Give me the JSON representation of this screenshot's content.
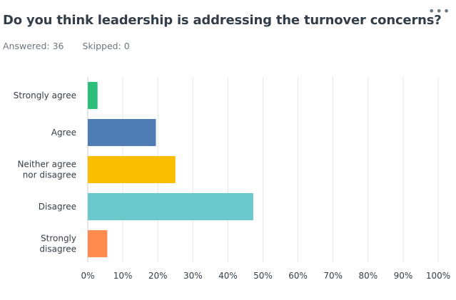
{
  "header": {
    "title": "Do you think leadership is addressing the turnover concerns?",
    "answered": "Answered: 36",
    "skipped": "Skipped: 0",
    "more_icon": "ellipsis-icon",
    "more_glyph": "•••"
  },
  "chart_data": {
    "type": "bar",
    "orientation": "horizontal",
    "categories": [
      [
        "Strongly agree"
      ],
      [
        "Agree"
      ],
      [
        "Neither agree",
        "nor disagree"
      ],
      [
        "Disagree"
      ],
      [
        "Strongly",
        "disagree"
      ]
    ],
    "values": [
      2.78,
      19.44,
      25.0,
      47.22,
      5.56
    ],
    "colors": [
      "#2dbe7a",
      "#507cb6",
      "#f9be00",
      "#6bc8cd",
      "#ff8b4f"
    ],
    "xlim": [
      0,
      100
    ],
    "xticks": [
      "0%",
      "10%",
      "20%",
      "30%",
      "40%",
      "50%",
      "60%",
      "70%",
      "80%",
      "90%",
      "100%"
    ],
    "grid": true,
    "title": "",
    "xlabel": "",
    "ylabel": ""
  }
}
